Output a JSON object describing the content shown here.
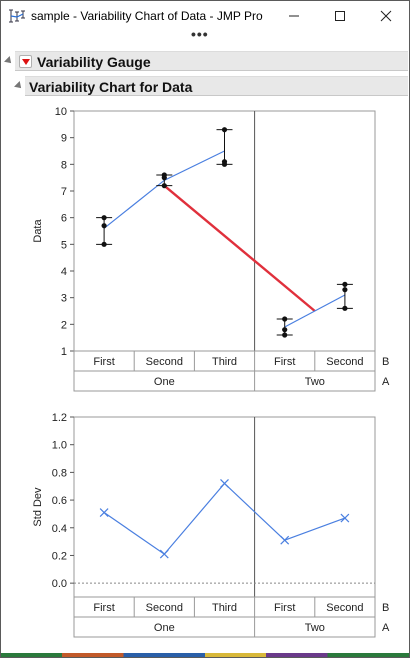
{
  "window": {
    "title": "sample - Variability Chart of Data - JMP Pro",
    "more_dots": "•••"
  },
  "outline": {
    "level1_label": "Variability Gauge",
    "level2_label": "Variability Chart for Data"
  },
  "chart_data": [
    {
      "type": "line",
      "ylabel": "Data",
      "ylim": [
        1,
        10
      ],
      "yticks": [
        "1",
        "2",
        "3",
        "4",
        "5",
        "6",
        "7",
        "8",
        "9",
        "10"
      ],
      "factor_B_label": "B",
      "factor_A_label": "A",
      "groups": [
        {
          "A": "One",
          "levels": [
            "First",
            "Second",
            "Third"
          ]
        },
        {
          "A": "Two",
          "levels": [
            "First",
            "Second"
          ]
        }
      ],
      "cells": [
        {
          "A": "One",
          "B": "First",
          "points": [
            6.0,
            5.7,
            5.0
          ],
          "mean": 5.6,
          "min": 5.0,
          "max": 6.0
        },
        {
          "A": "One",
          "B": "Second",
          "points": [
            7.6,
            7.5,
            7.2
          ],
          "mean": 7.4,
          "min": 7.2,
          "max": 7.6
        },
        {
          "A": "One",
          "B": "Third",
          "points": [
            9.3,
            8.1,
            8.0
          ],
          "mean": 8.5,
          "min": 8.0,
          "max": 9.3
        },
        {
          "A": "Two",
          "B": "First",
          "points": [
            2.2,
            1.8,
            1.6
          ],
          "mean": 1.9,
          "min": 1.6,
          "max": 2.2
        },
        {
          "A": "Two",
          "B": "Second",
          "points": [
            3.5,
            3.3,
            2.6
          ],
          "mean": 3.1,
          "min": 2.6,
          "max": 3.5
        }
      ],
      "group_means": [
        {
          "A": "One",
          "mean": 7.2
        },
        {
          "A": "Two",
          "mean": 2.5
        }
      ],
      "colors": {
        "cell_mean_line": "#4a7fe0",
        "group_mean_line": "#e0303c",
        "points": "#111111"
      }
    },
    {
      "type": "line",
      "ylabel": "Std Dev",
      "ylim": [
        -0.1,
        1.2
      ],
      "yticks": [
        "0.0",
        "0.2",
        "0.4",
        "0.6",
        "0.8",
        "1.0",
        "1.2"
      ],
      "factor_B_label": "B",
      "factor_A_label": "A",
      "groups": [
        {
          "A": "One",
          "levels": [
            "First",
            "Second",
            "Third"
          ]
        },
        {
          "A": "Two",
          "levels": [
            "First",
            "Second"
          ]
        }
      ],
      "values": [
        0.51,
        0.21,
        0.72,
        0.31,
        0.47
      ],
      "colors": {
        "line": "#4a7fe0",
        "zero_line": "#888888"
      }
    }
  ]
}
